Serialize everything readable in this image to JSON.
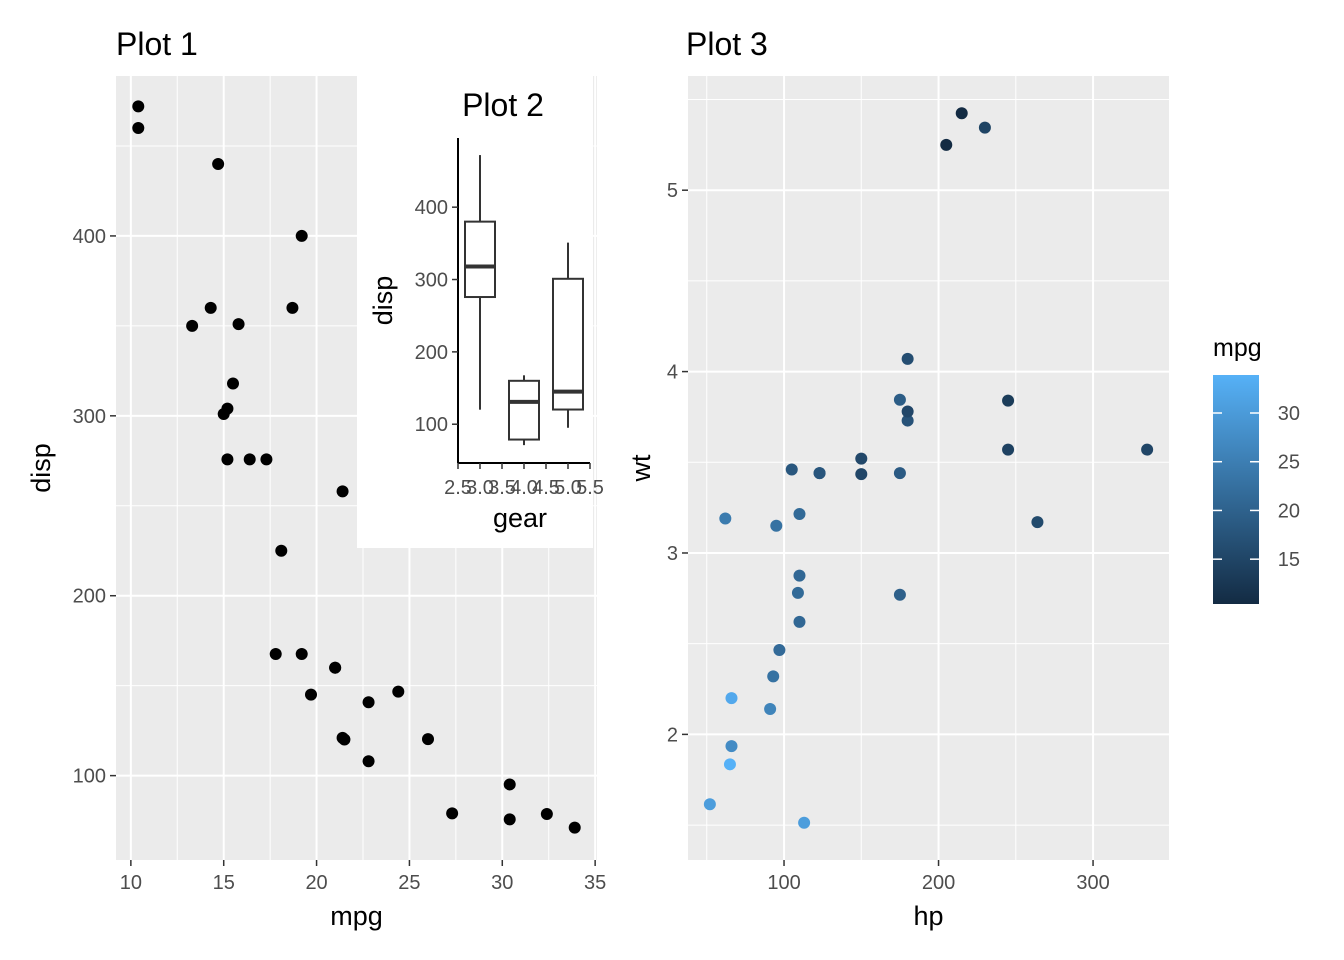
{
  "chart_data": [
    {
      "type": "scatter",
      "title": "Plot 1",
      "xlabel": "mpg",
      "ylabel": "disp",
      "xlim": [
        9.2,
        35.1
      ],
      "ylim": [
        53.1,
        488.9
      ],
      "xticks": [
        10,
        15,
        20,
        25,
        30,
        35
      ],
      "yticks": [
        100,
        200,
        300,
        400
      ],
      "point_color": "#000000",
      "points": [
        [
          21.0,
          160
        ],
        [
          21.0,
          160
        ],
        [
          22.8,
          108
        ],
        [
          21.4,
          258
        ],
        [
          18.7,
          360
        ],
        [
          18.1,
          225
        ],
        [
          14.3,
          360
        ],
        [
          24.4,
          146.7
        ],
        [
          22.8,
          140.8
        ],
        [
          19.2,
          167.6
        ],
        [
          17.8,
          167.6
        ],
        [
          16.4,
          275.8
        ],
        [
          17.3,
          275.8
        ],
        [
          15.2,
          275.8
        ],
        [
          10.4,
          472
        ],
        [
          10.4,
          460
        ],
        [
          14.7,
          440
        ],
        [
          32.4,
          78.7
        ],
        [
          30.4,
          75.7
        ],
        [
          33.9,
          71.1
        ],
        [
          21.5,
          120.1
        ],
        [
          15.5,
          318
        ],
        [
          15.2,
          304
        ],
        [
          13.3,
          350
        ],
        [
          19.2,
          400
        ],
        [
          27.3,
          79
        ],
        [
          26.0,
          120.3
        ],
        [
          30.4,
          95.1
        ],
        [
          15.8,
          351
        ],
        [
          19.7,
          145
        ],
        [
          15.0,
          301
        ],
        [
          21.4,
          121
        ]
      ]
    },
    {
      "type": "box",
      "title": "Plot 2",
      "xlabel": "gear",
      "ylabel": "disp",
      "xlim": [
        2.5,
        5.5
      ],
      "ylim": [
        46.4,
        495.6
      ],
      "xticks": [
        2.5,
        3.0,
        3.5,
        4.0,
        4.5,
        5.0,
        5.5
      ],
      "xtick_labels": [
        "2.5",
        "3.0",
        "3.5",
        "4.0",
        "4.5",
        "5.0",
        "5.5"
      ],
      "yticks": [
        100,
        200,
        300,
        400
      ],
      "boxes": [
        {
          "x": 3,
          "min": 120.1,
          "q1": 275.8,
          "median": 318,
          "q3": 380,
          "max": 472
        },
        {
          "x": 4,
          "min": 71.1,
          "q1": 78.8,
          "median": 130.9,
          "q3": 160,
          "max": 167.6
        },
        {
          "x": 5,
          "min": 95.1,
          "q1": 120.3,
          "median": 145,
          "q3": 301,
          "max": 351
        }
      ]
    },
    {
      "type": "scatter",
      "title": "Plot 3",
      "xlabel": "hp",
      "ylabel": "wt",
      "xlim": [
        37.85,
        349.15
      ],
      "ylim": [
        1.3075,
        5.6295
      ],
      "xticks": [
        100,
        200,
        300
      ],
      "yticks": [
        2,
        3,
        4,
        5
      ],
      "color_by": "mpg",
      "points": [
        [
          110,
          2.62,
          21.0
        ],
        [
          110,
          2.875,
          21.0
        ],
        [
          93,
          2.32,
          22.8
        ],
        [
          110,
          3.215,
          21.4
        ],
        [
          175,
          3.44,
          18.7
        ],
        [
          105,
          3.46,
          18.1
        ],
        [
          245,
          3.57,
          14.3
        ],
        [
          62,
          3.19,
          24.4
        ],
        [
          95,
          3.15,
          22.8
        ],
        [
          123,
          3.44,
          19.2
        ],
        [
          123,
          3.44,
          17.8
        ],
        [
          180,
          4.07,
          16.4
        ],
        [
          180,
          3.73,
          17.3
        ],
        [
          180,
          3.78,
          15.2
        ],
        [
          205,
          5.25,
          10.4
        ],
        [
          215,
          5.424,
          10.4
        ],
        [
          230,
          5.345,
          14.7
        ],
        [
          66,
          2.2,
          32.4
        ],
        [
          52,
          1.615,
          30.4
        ],
        [
          65,
          1.835,
          33.9
        ],
        [
          97,
          2.465,
          21.5
        ],
        [
          150,
          3.52,
          15.5
        ],
        [
          150,
          3.435,
          15.2
        ],
        [
          245,
          3.84,
          13.3
        ],
        [
          175,
          3.845,
          19.2
        ],
        [
          66,
          1.935,
          27.3
        ],
        [
          91,
          2.14,
          26.0
        ],
        [
          113,
          1.513,
          30.4
        ],
        [
          264,
          3.17,
          15.8
        ],
        [
          175,
          2.77,
          19.7
        ],
        [
          335,
          3.57,
          15.0
        ],
        [
          109,
          2.78,
          21.4
        ]
      ],
      "legend": {
        "title": "mpg",
        "placement": "right",
        "range": [
          10.4,
          33.9
        ],
        "ticks": [
          15,
          20,
          25,
          30
        ],
        "low_color": "#132B43",
        "high_color": "#56B1F7"
      }
    }
  ]
}
